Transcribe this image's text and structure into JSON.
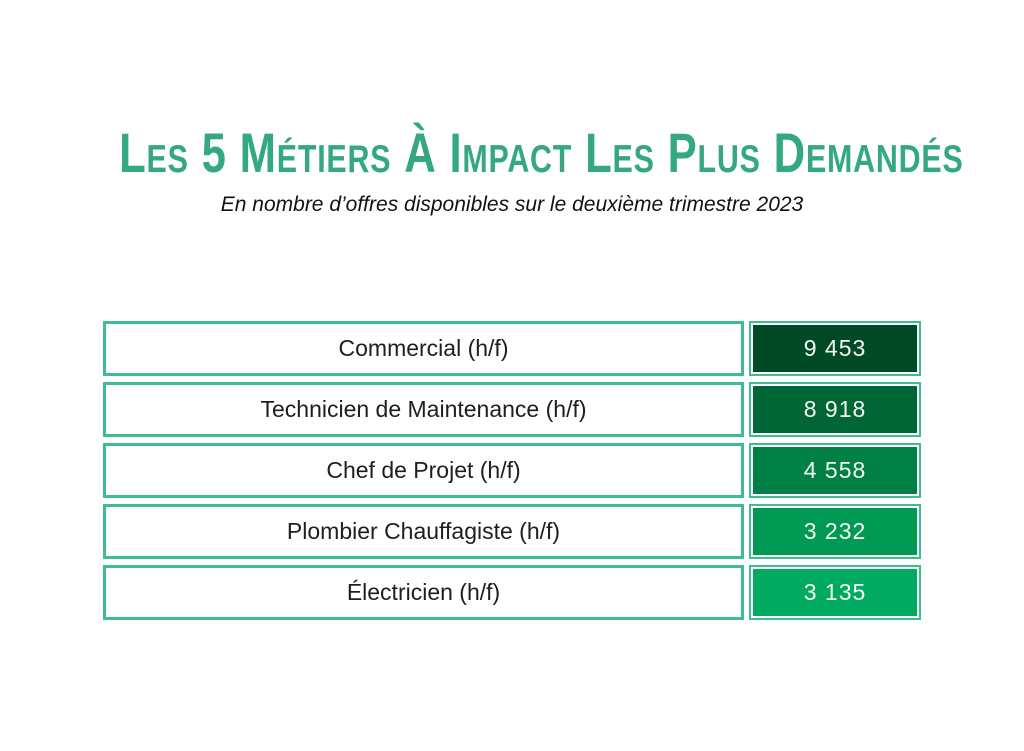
{
  "page": {
    "title": "Les 5 Métiers À Impact Les Plus Demandés",
    "subtitle": "En nombre d’offres disponibles sur le deuxième trimestre 2023",
    "title_color": "#34a87e",
    "cell_border_color": "#3ebd90",
    "background_color": "#ffffff"
  },
  "chart_data": {
    "type": "table",
    "title": "Les 5 métiers à impact les plus demandés",
    "subtitle": "En nombre d’offres disponibles sur le deuxième trimestre 2023",
    "value_unit": "offres d’emploi",
    "rows": [
      {
        "label": "Commercial (h/f)",
        "value": "9 453",
        "value_numeric": 9453,
        "color": "#004b26"
      },
      {
        "label": "Technicien de Maintenance (h/f)",
        "value": "8 918",
        "value_numeric": 8918,
        "color": "#006636"
      },
      {
        "label": "Chef de Projet (h/f)",
        "value": "4 558",
        "value_numeric": 4558,
        "color": "#008044"
      },
      {
        "label": "Plombier Chauffagiste (h/f)",
        "value": "3 232",
        "value_numeric": 3232,
        "color": "#009a55"
      },
      {
        "label": "Électricien (h/f)",
        "value": "3 135",
        "value_numeric": 3135,
        "color": "#00ab61"
      }
    ]
  }
}
